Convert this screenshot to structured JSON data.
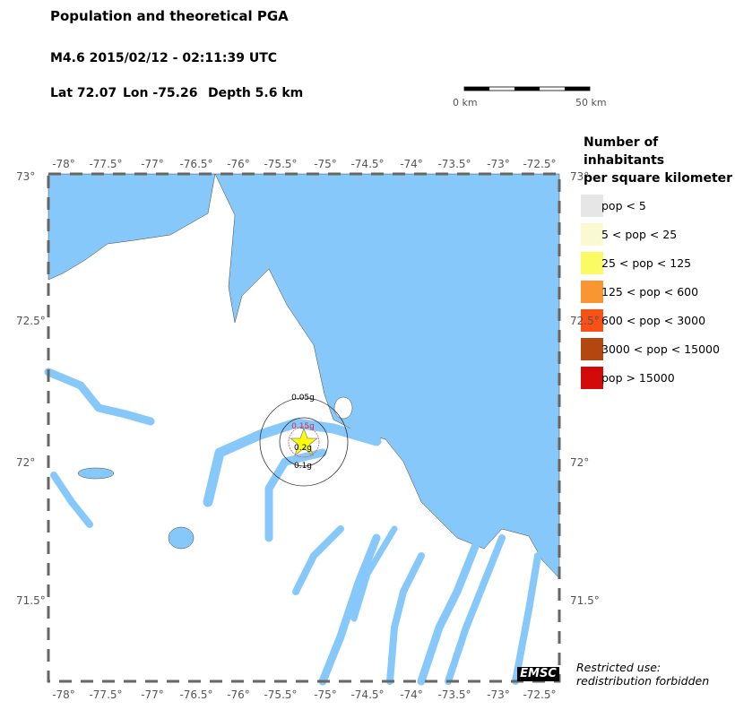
{
  "title": "Population and theoretical PGA",
  "event": "M4.6  2015/02/12 - 02:11:39 UTC",
  "location": {
    "lat": "Lat 72.07",
    "lon": "Lon -75.26",
    "depth": "Depth  5.6 km"
  },
  "scale_bar": {
    "start": "0 km",
    "end": "50 km"
  },
  "lon_ticks": [
    "-78°",
    "-77.5°",
    "-77°",
    "-76.5°",
    "-76°",
    "-75.5°",
    "-75°",
    "-74.5°",
    "-74°",
    "-73.5°",
    "-73°",
    "-72.5°"
  ],
  "lat_ticks": [
    "73°",
    "72.5°",
    "72°",
    "71.5°"
  ],
  "pga_labels": [
    "0.05g",
    "0.15g",
    "0.2g",
    "0.1g"
  ],
  "legend": {
    "title_line1": "Number of inhabitants",
    "title_line2": "per square kilometer",
    "items": [
      {
        "label": "pop < 5",
        "color": "#e6e6e6"
      },
      {
        "label": "5 < pop < 25",
        "color": "#fafad2"
      },
      {
        "label": "25 < pop < 125",
        "color": "#fafa64"
      },
      {
        "label": "125 < pop < 600",
        "color": "#fa9632"
      },
      {
        "label": "600 < pop < 3000",
        "color": "#fa5014"
      },
      {
        "label": "3000 < pop < 15000",
        "color": "#b4460f"
      },
      {
        "label": "pop > 15000",
        "color": "#d20a0a"
      }
    ]
  },
  "colors": {
    "water": "#87c8fa",
    "land": "#ffffff",
    "epicenter": "#ffff00"
  },
  "epicenter_icon": "star-icon",
  "logo": "EMSC",
  "note_line1": "Restricted use:",
  "note_line2": "redistribution forbidden"
}
